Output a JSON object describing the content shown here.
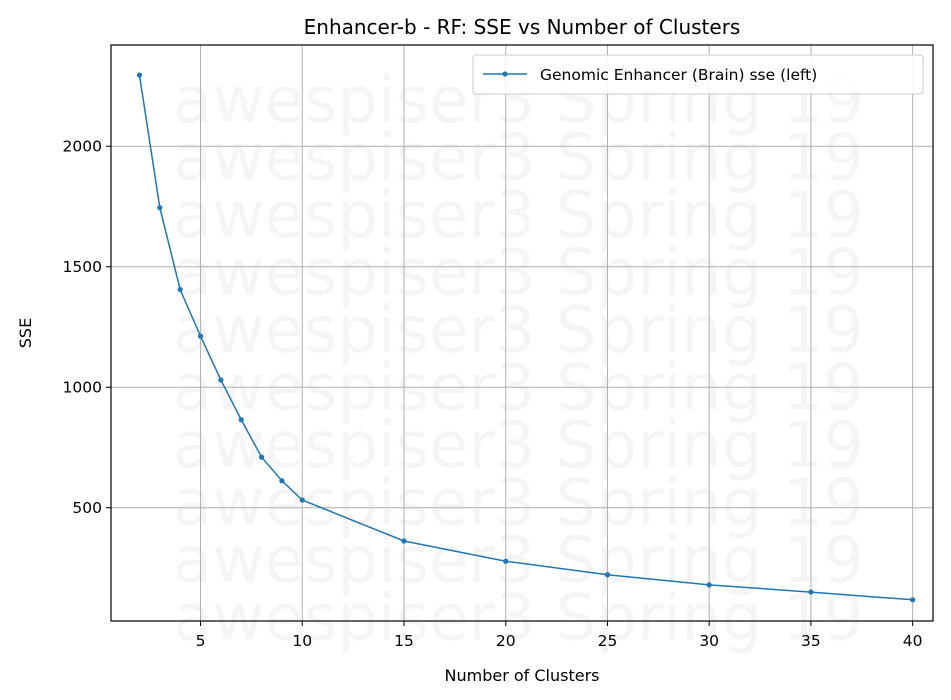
{
  "chart_data": {
    "type": "line",
    "title": "Enhancer-b - RF: SSE vs Number of Clusters",
    "xlabel": "Number of Clusters",
    "ylabel": "SSE",
    "xlim": [
      0.6,
      41.0
    ],
    "ylim": [
      30,
      2420
    ],
    "xticks": [
      5,
      10,
      15,
      20,
      25,
      30,
      35,
      40
    ],
    "yticks": [
      500,
      1000,
      1500,
      2000
    ],
    "grid": true,
    "legend_position": "top-right",
    "watermark": "awespiser3 Spring 19",
    "series": [
      {
        "name": "Genomic Enhancer (Brain) sse (left)",
        "color": "#1f77b4",
        "x": [
          2,
          3,
          4,
          5,
          6,
          7,
          8,
          9,
          10,
          15,
          20,
          25,
          30,
          35,
          40
        ],
        "y": [
          2295,
          1745,
          1405,
          1212,
          1030,
          865,
          710,
          612,
          532,
          362,
          278,
          222,
          180,
          150,
          118
        ]
      }
    ]
  }
}
